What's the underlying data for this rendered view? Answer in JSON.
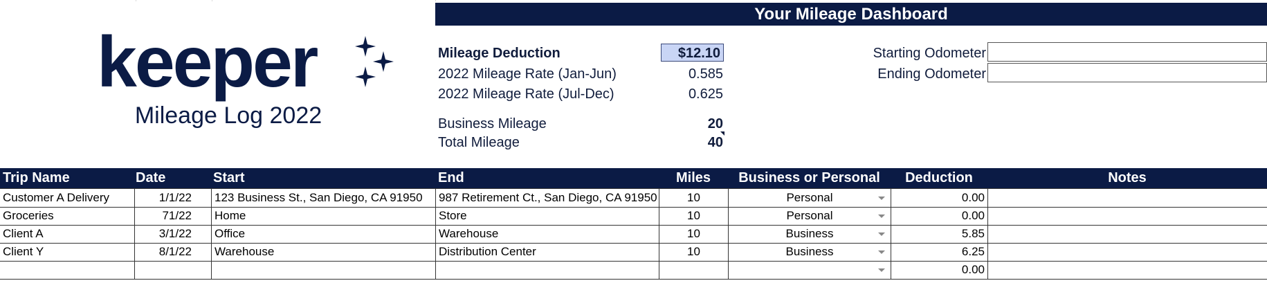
{
  "logo": {
    "wordmark": "keeper",
    "subtitle": "Mileage Log 2022"
  },
  "dashboard": {
    "title": "Your Mileage Dashboard",
    "mileage_deduction_label": "Mileage Deduction",
    "mileage_deduction_value": "$12.10",
    "rate1_label": "2022 Mileage Rate (Jan-Jun)",
    "rate1_value": "0.585",
    "rate2_label": "2022 Mileage Rate (Jul-Dec)",
    "rate2_value": "0.625",
    "business_mileage_label": "Business Mileage",
    "business_mileage_value": "20",
    "total_mileage_label": "Total Mileage",
    "total_mileage_value": "40",
    "starting_odometer_label": "Starting Odometer",
    "ending_odometer_label": "Ending Odometer"
  },
  "table": {
    "headers": {
      "trip": "Trip Name",
      "date": "Date",
      "start": "Start",
      "end": "End",
      "miles": "Miles",
      "type": "Business or Personal",
      "deduction": "Deduction",
      "notes": "Notes"
    },
    "rows": [
      {
        "trip": "Customer A Delivery",
        "date": "1/1/22",
        "start": "123 Business St., San Diego, CA 91950",
        "end": "987 Retirement Ct., San Diego, CA 91950",
        "miles": "10",
        "type": "Personal",
        "deduction": "0.00",
        "notes": ""
      },
      {
        "trip": "Groceries",
        "date": "71/22",
        "start": "Home",
        "end": "Store",
        "miles": "10",
        "type": "Personal",
        "deduction": "0.00",
        "notes": ""
      },
      {
        "trip": "Client A",
        "date": "3/1/22",
        "start": "Office",
        "end": "Warehouse",
        "miles": "10",
        "type": "Business",
        "deduction": "5.85",
        "notes": ""
      },
      {
        "trip": "Client Y",
        "date": "8/1/22",
        "start": "Warehouse",
        "end": "Distribution Center",
        "miles": "10",
        "type": "Business",
        "deduction": "6.25",
        "notes": ""
      },
      {
        "trip": "",
        "date": "",
        "start": "",
        "end": "",
        "miles": "",
        "type": "",
        "deduction": "0.00",
        "notes": ""
      }
    ]
  }
}
